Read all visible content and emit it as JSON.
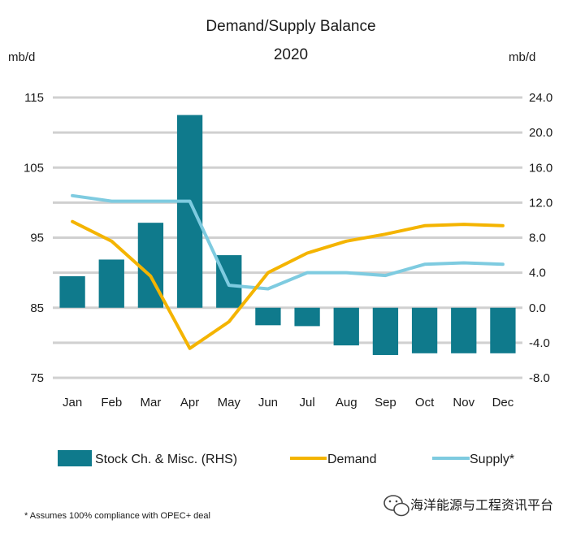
{
  "chart_data": {
    "type": "bar+line",
    "title": "Demand/Supply Balance",
    "subtitle": "2020",
    "ylabel_left": "mb/d",
    "ylabel_right": "mb/d",
    "y_left_ticks": [
      "115",
      "105",
      "95",
      "85",
      "75"
    ],
    "y_left_range": [
      75,
      115
    ],
    "y_right_ticks": [
      "24.0",
      "20.0",
      "16.0",
      "12.0",
      "8.0",
      "4.0",
      "0.0",
      "-4.0",
      "-8.0"
    ],
    "y_right_range": [
      -8,
      24
    ],
    "grid": "horizontal",
    "legend_position": "bottom",
    "categories": [
      "Jan",
      "Feb",
      "Mar",
      "Apr",
      "May",
      "Jun",
      "Jul",
      "Aug",
      "Sep",
      "Oct",
      "Nov",
      "Dec"
    ],
    "series": [
      {
        "name": "Stock Ch. & Misc. (RHS)",
        "type": "bar",
        "axis": "right",
        "color": "#0f7a8c",
        "values": [
          3.6,
          5.5,
          9.7,
          22.0,
          6.0,
          -2.0,
          -2.1,
          -4.3,
          -5.4,
          -5.2,
          -5.2,
          -5.2
        ]
      },
      {
        "name": "Demand",
        "type": "line",
        "axis": "left",
        "color": "#f4b400",
        "values": [
          97.3,
          94.5,
          89.5,
          79.2,
          83.0,
          90.0,
          92.8,
          94.5,
          95.5,
          96.7,
          96.9,
          96.7
        ]
      },
      {
        "name": "Supply*",
        "type": "line",
        "axis": "left",
        "color": "#7ecbe0",
        "values": [
          101.0,
          100.2,
          100.2,
          100.2,
          88.2,
          87.7,
          90.0,
          90.0,
          89.6,
          91.2,
          91.4,
          91.2
        ]
      }
    ],
    "footnote": "* Assumes 100% compliance with OPEC+ deal"
  },
  "watermark": {
    "text": "海洋能源与工程资讯平台",
    "icon": "wechat-icon"
  }
}
